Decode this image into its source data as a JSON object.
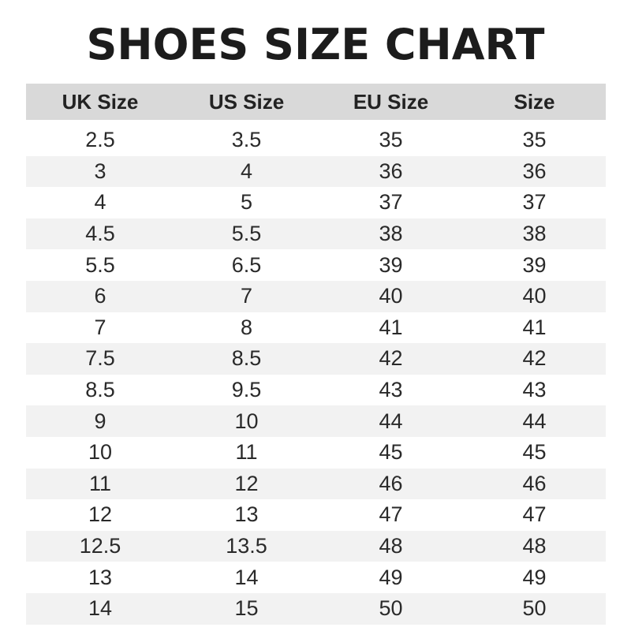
{
  "title": "SHOES SIZE CHART",
  "headers": [
    "UK Size",
    "US Size",
    "EU Size",
    "Size"
  ],
  "rows": [
    [
      "2.5",
      "3.5",
      "35",
      "35"
    ],
    [
      "3",
      "4",
      "36",
      "36"
    ],
    [
      "4",
      "5",
      "37",
      "37"
    ],
    [
      "4.5",
      "5.5",
      "38",
      "38"
    ],
    [
      "5.5",
      "6.5",
      "39",
      "39"
    ],
    [
      "6",
      "7",
      "40",
      "40"
    ],
    [
      "7",
      "8",
      "41",
      "41"
    ],
    [
      "7.5",
      "8.5",
      "42",
      "42"
    ],
    [
      "8.5",
      "9.5",
      "43",
      "43"
    ],
    [
      "9",
      "10",
      "44",
      "44"
    ],
    [
      "10",
      "11",
      "45",
      "45"
    ],
    [
      "11",
      "12",
      "46",
      "46"
    ],
    [
      "12",
      "13",
      "47",
      "47"
    ],
    [
      "12.5",
      "13.5",
      "48",
      "48"
    ],
    [
      "13",
      "14",
      "49",
      "49"
    ],
    [
      "14",
      "15",
      "50",
      "50"
    ]
  ],
  "colors": {
    "header_bg": "#d9d9d9",
    "stripe_bg": "#f2f2f2"
  }
}
